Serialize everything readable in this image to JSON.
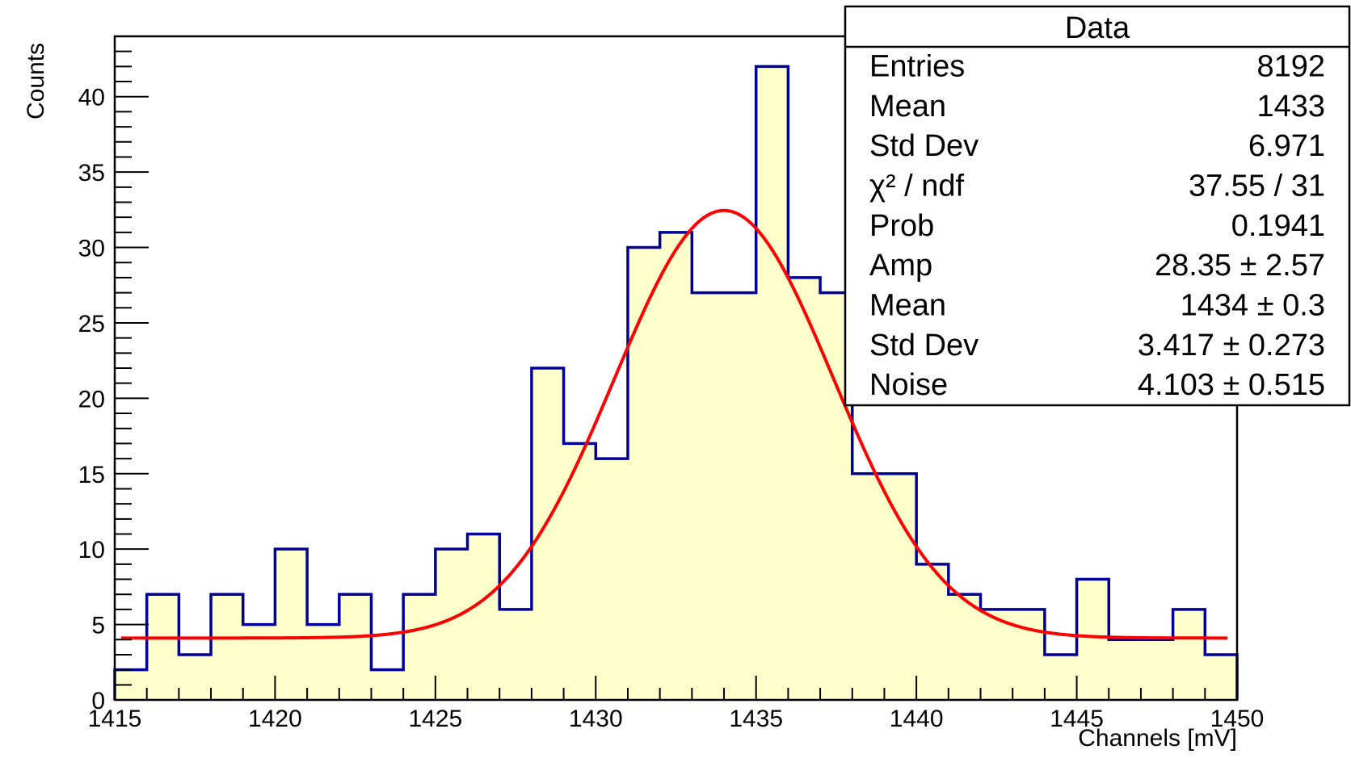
{
  "chart_data": {
    "type": "bar",
    "title": "",
    "xlabel": "Channels [mV]",
    "ylabel": "Counts",
    "xlim": [
      1415,
      1450
    ],
    "ylim": [
      0,
      44
    ],
    "x_ticks": [
      1415,
      1420,
      1425,
      1430,
      1435,
      1440,
      1445,
      1450
    ],
    "y_ticks": [
      0,
      5,
      10,
      15,
      20,
      25,
      30,
      35,
      40
    ],
    "grid": false,
    "series": [
      {
        "kind": "histogram",
        "bin_edges": [
          1415,
          1416,
          1417,
          1418,
          1419,
          1420,
          1421,
          1422,
          1423,
          1424,
          1425,
          1426,
          1427,
          1428,
          1429,
          1430,
          1431,
          1432,
          1433,
          1434,
          1435,
          1436,
          1437,
          1438,
          1439,
          1440,
          1441,
          1442,
          1443,
          1444,
          1445,
          1446,
          1447,
          1448,
          1449,
          1450
        ],
        "counts": [
          2,
          7,
          3,
          7,
          5,
          10,
          5,
          7,
          2,
          7,
          10,
          11,
          6,
          22,
          17,
          16,
          30,
          31,
          27,
          27,
          42,
          28,
          27,
          15,
          15,
          9,
          7,
          6,
          6,
          3,
          8,
          4,
          4,
          6,
          3
        ],
        "fill_color": "#ffffcc",
        "line_color": "#000099"
      },
      {
        "kind": "fit",
        "function": "gaussian+constant",
        "amp": 28.35,
        "mean": 1434,
        "sigma": 3.417,
        "noise": 4.103,
        "x_range": [
          1415.2,
          1449.7
        ],
        "color": "#ff0000"
      }
    ],
    "stats_box": {
      "title": "Data",
      "position": "top-right",
      "rows": [
        {
          "label": "Entries",
          "value": "8192"
        },
        {
          "label": "Mean",
          "value": "1433"
        },
        {
          "label": "Std Dev",
          "value": "6.971"
        },
        {
          "label": "χ² / ndf",
          "value": "37.55 / 31"
        },
        {
          "label": "Prob",
          "value": "0.1941"
        },
        {
          "label": "Amp",
          "value": "28.35 ± 2.57"
        },
        {
          "label": "Mean",
          "value": "1434 ± 0.3"
        },
        {
          "label": "Std Dev",
          "value": "3.417 ± 0.273"
        },
        {
          "label": "Noise",
          "value": "4.103 ± 0.515"
        }
      ]
    }
  }
}
